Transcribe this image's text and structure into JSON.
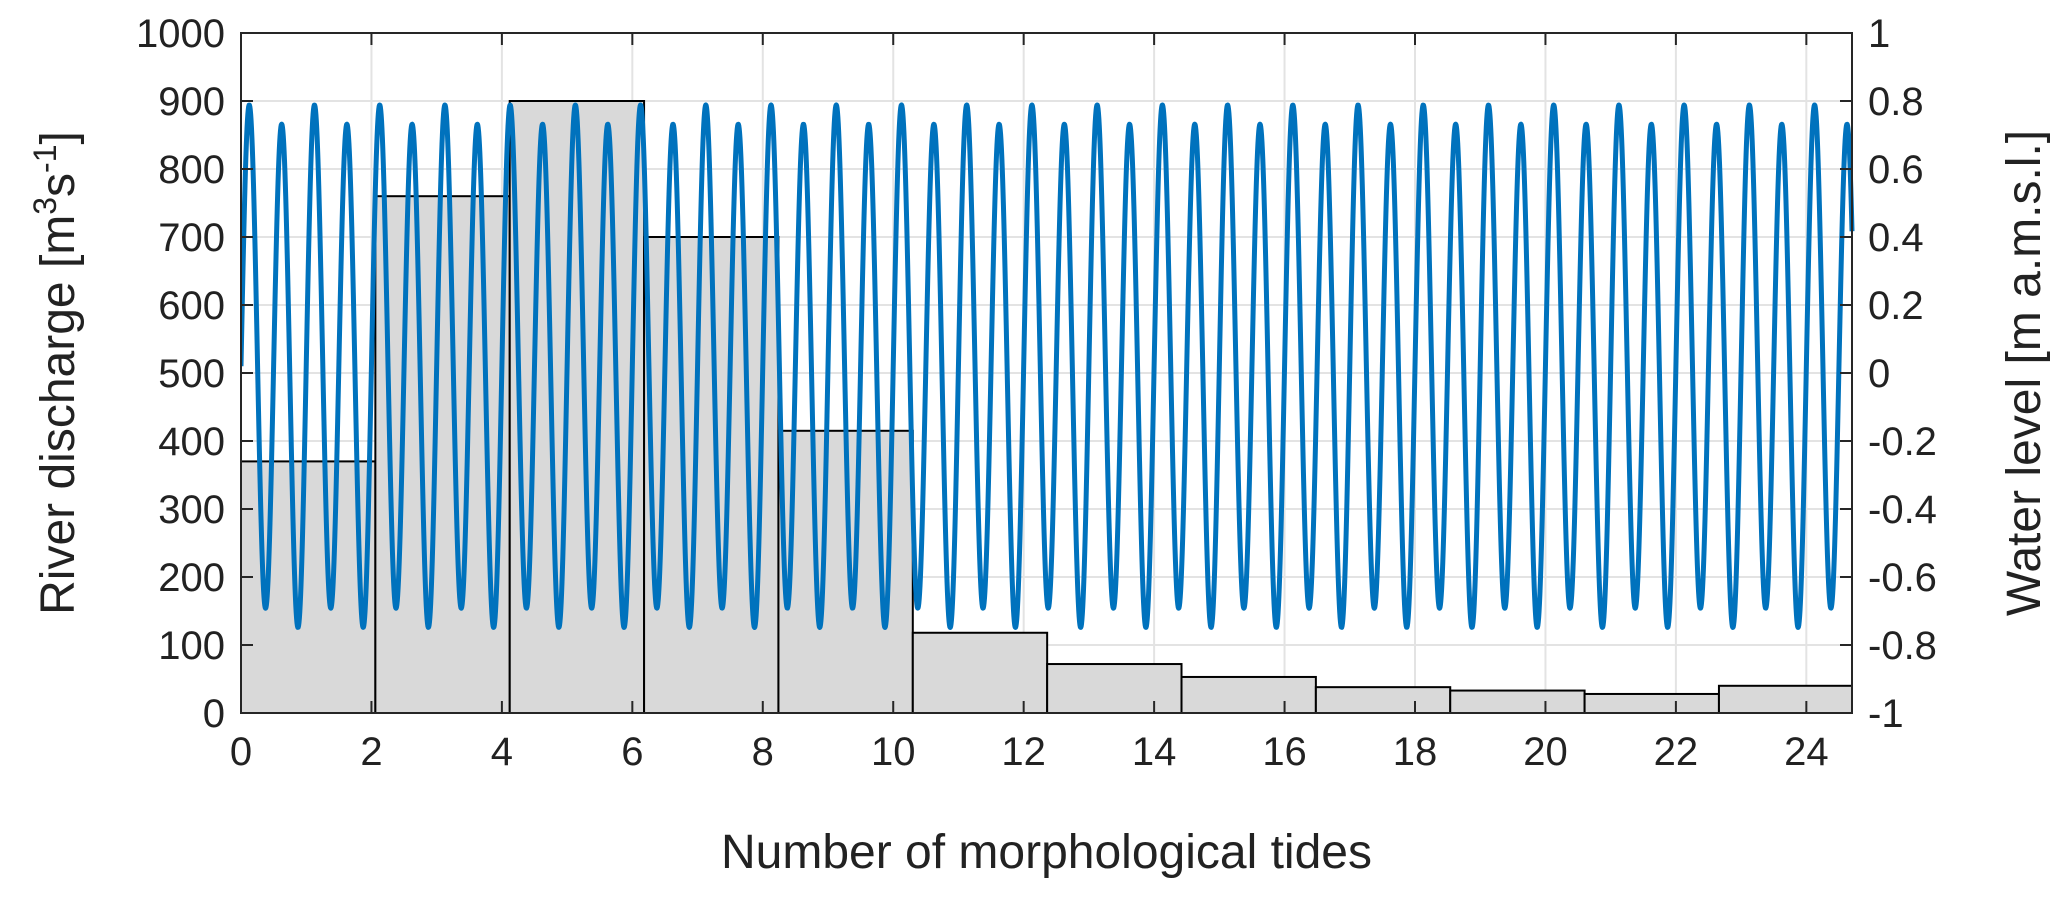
{
  "chart_data": {
    "type": "bar",
    "xlabel": "Number of morphological tides",
    "ylabel_left": {
      "main": "River discharge [m",
      "sup1": "3",
      "mid": "s",
      "sup2": "-1",
      "end": "]"
    },
    "ylabel_right": "Water level [m a.m.s.l.]",
    "xlim": [
      0,
      24.7
    ],
    "ylim_left": [
      0,
      1000
    ],
    "ylim_right": [
      -1,
      1
    ],
    "x_ticks": [
      0,
      2,
      4,
      6,
      8,
      10,
      12,
      14,
      16,
      18,
      20,
      22,
      24
    ],
    "y_left_ticks": [
      0,
      100,
      200,
      300,
      400,
      500,
      600,
      700,
      800,
      900,
      1000
    ],
    "y_right_ticks": [
      "-1",
      "-0.8",
      "-0.6",
      "-0.4",
      "-0.2",
      "0",
      "0.2",
      "0.4",
      "0.6",
      "0.8",
      "1"
    ],
    "grid": true,
    "colors": {
      "bars": "#d9d9d9",
      "bar_edge": "#000000",
      "water_level": "#0072bd",
      "grid": "#e3e3e3",
      "axis": "#262626"
    },
    "series": [
      {
        "kind": "bar",
        "axis": "left",
        "bins": [
          {
            "x0": 0,
            "x1": 2.06,
            "value": 370
          },
          {
            "x0": 2.06,
            "x1": 4.12,
            "value": 760
          },
          {
            "x0": 4.12,
            "x1": 6.18,
            "value": 900
          },
          {
            "x0": 6.18,
            "x1": 8.24,
            "value": 700
          },
          {
            "x0": 8.24,
            "x1": 10.3,
            "value": 415
          },
          {
            "x0": 10.3,
            "x1": 12.36,
            "value": 118
          },
          {
            "x0": 12.36,
            "x1": 14.42,
            "value": 72
          },
          {
            "x0": 14.42,
            "x1": 16.48,
            "value": 53
          },
          {
            "x0": 16.48,
            "x1": 18.54,
            "value": 38
          },
          {
            "x0": 18.54,
            "x1": 20.6,
            "value": 33
          },
          {
            "x0": 20.6,
            "x1": 22.66,
            "value": 28
          },
          {
            "x0": 22.66,
            "x1": 24.7,
            "value": 40
          }
        ]
      },
      {
        "kind": "line",
        "axis": "right",
        "description": "semi-diurnal tidal water level, two oscillations per morphological tide",
        "mean": 0.02,
        "amplitude_m2": 0.74,
        "amplitude_secondary": 0.04,
        "cycles_per_tide": 2,
        "start_phase_deg": 0,
        "end_x": 24.7
      }
    ]
  }
}
